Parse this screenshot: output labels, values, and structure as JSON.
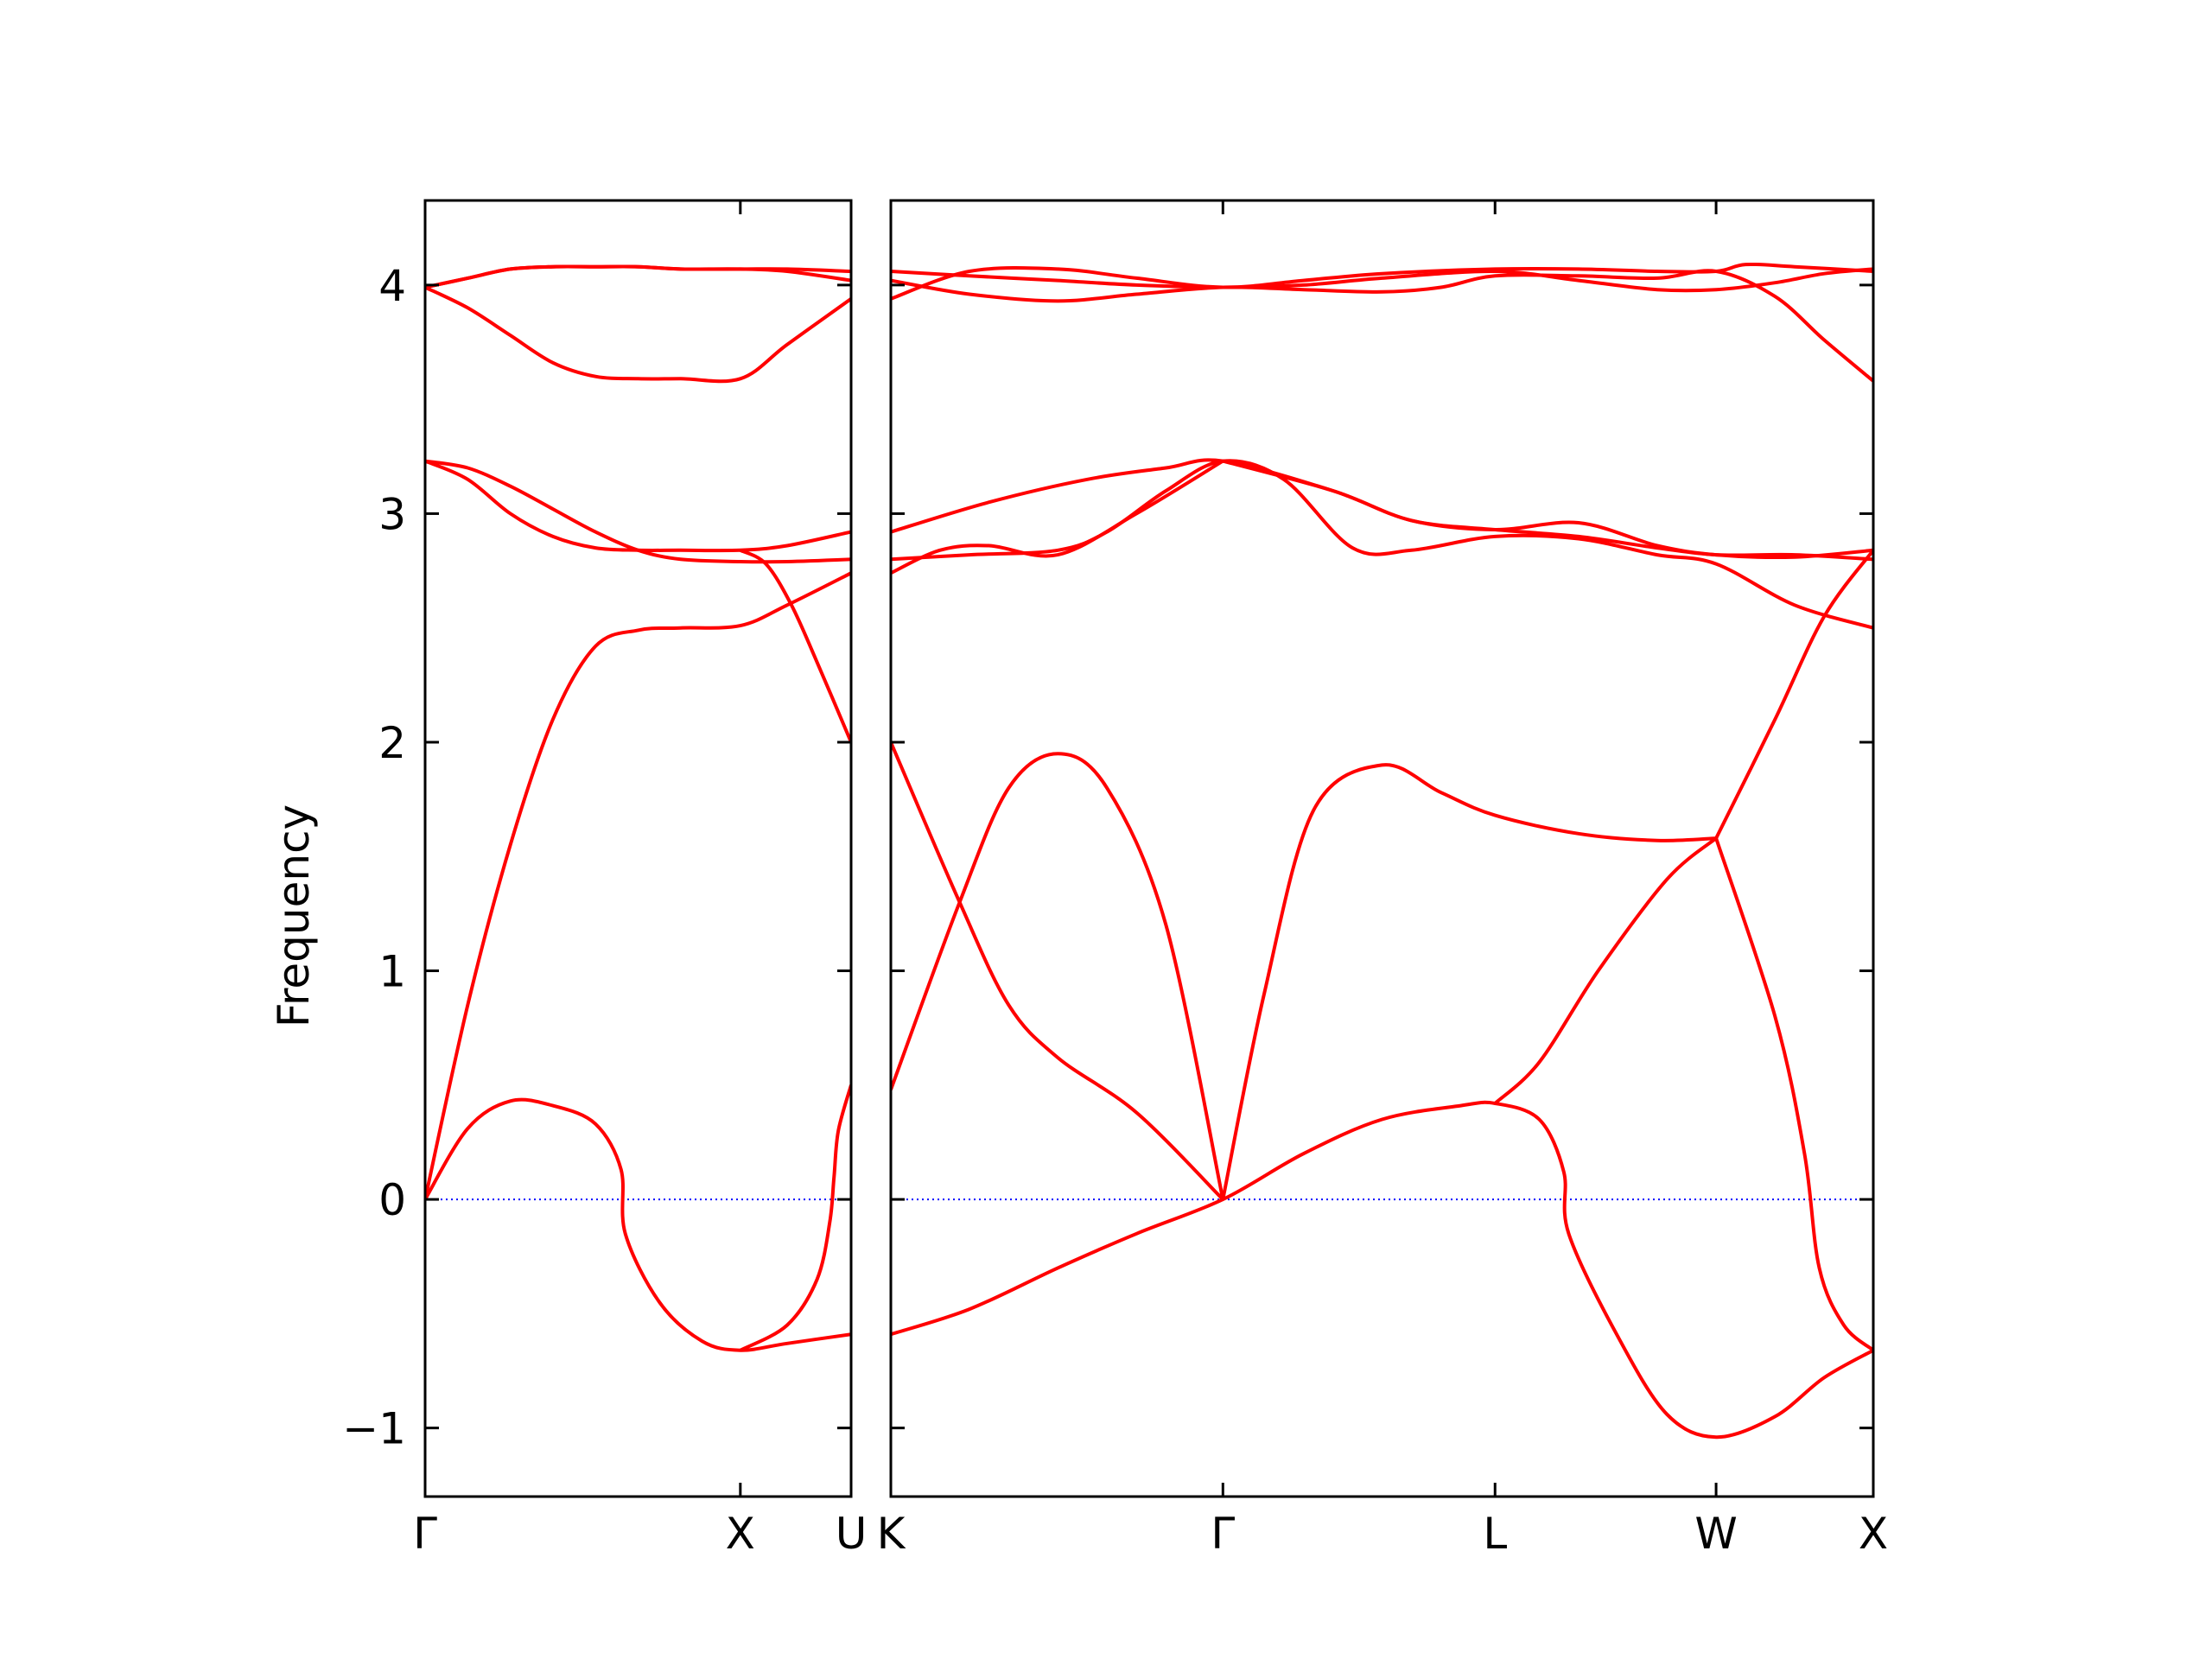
{
  "chart_data": {
    "type": "line",
    "ylabel": "Frequency",
    "ylim": [
      -1.3,
      4.37
    ],
    "yticks": [
      -1,
      0,
      1,
      2,
      3,
      4
    ],
    "ytick_labels": [
      "−1",
      "0",
      "1",
      "2",
      "3",
      "4"
    ],
    "colors": {
      "bands": "#ff0000",
      "zero_line": "#0000ff",
      "frame": "#000000"
    },
    "panels": [
      {
        "name": "panel-gamma-x-u",
        "xlim": [
          0,
          1
        ],
        "xticks": [
          {
            "pos": 0.0,
            "label": "Γ"
          },
          {
            "pos": 0.74,
            "label": "X"
          },
          {
            "pos": 1.0,
            "label": "U"
          }
        ],
        "bands": [
          [
            [
              0,
              0
            ],
            [
              0.1,
              0.31
            ],
            [
              0.2,
              0.43
            ],
            [
              0.3,
              0.41
            ],
            [
              0.4,
              0.33
            ],
            [
              0.46,
              0.13
            ],
            [
              0.47,
              -0.15
            ],
            [
              0.55,
              -0.45
            ],
            [
              0.65,
              -0.62
            ],
            [
              0.74,
              -0.66
            ],
            [
              0.85,
              -0.63
            ],
            [
              1.0,
              -0.59
            ]
          ],
          [
            [
              0,
              0
            ],
            [
              0.1,
              0.85
            ],
            [
              0.2,
              1.55
            ],
            [
              0.3,
              2.1
            ],
            [
              0.4,
              2.42
            ],
            [
              0.5,
              2.49
            ],
            [
              0.6,
              2.5
            ],
            [
              0.74,
              2.51
            ],
            [
              0.85,
              2.6
            ],
            [
              1.0,
              2.74
            ]
          ],
          [
            [
              0,
              3.23
            ],
            [
              0.1,
              3.15
            ],
            [
              0.2,
              3.0
            ],
            [
              0.3,
              2.9
            ],
            [
              0.4,
              2.85
            ],
            [
              0.5,
              2.84
            ],
            [
              0.6,
              2.84
            ],
            [
              0.74,
              2.84
            ],
            [
              0.85,
              2.86
            ],
            [
              1.0,
              2.92
            ]
          ],
          [
            [
              0,
              3.23
            ],
            [
              0.1,
              3.2
            ],
            [
              0.2,
              3.12
            ],
            [
              0.3,
              3.02
            ],
            [
              0.4,
              2.92
            ],
            [
              0.5,
              2.84
            ],
            [
              0.6,
              2.8
            ],
            [
              0.74,
              2.79
            ],
            [
              0.85,
              2.79
            ],
            [
              1.0,
              2.8
            ]
          ],
          [
            [
              0,
              3.99
            ],
            [
              0.1,
              3.9
            ],
            [
              0.2,
              3.78
            ],
            [
              0.3,
              3.66
            ],
            [
              0.4,
              3.6
            ],
            [
              0.5,
              3.59
            ],
            [
              0.6,
              3.59
            ],
            [
              0.74,
              3.59
            ],
            [
              0.85,
              3.74
            ],
            [
              1.0,
              3.94
            ]
          ],
          [
            [
              0,
              3.99
            ],
            [
              0.1,
              4.03
            ],
            [
              0.2,
              4.07
            ],
            [
              0.3,
              4.08
            ],
            [
              0.4,
              4.08
            ],
            [
              0.5,
              4.08
            ],
            [
              0.6,
              4.07
            ],
            [
              0.74,
              4.07
            ],
            [
              0.85,
              4.06
            ],
            [
              1.0,
              4.02
            ]
          ],
          [
            [
              0,
              3.99
            ],
            [
              0.1,
              4.03
            ],
            [
              0.2,
              4.07
            ],
            [
              0.3,
              4.08
            ],
            [
              0.4,
              4.08
            ],
            [
              0.5,
              4.08
            ],
            [
              0.6,
              4.07
            ],
            [
              0.74,
              4.07
            ],
            [
              0.85,
              4.07
            ],
            [
              1.0,
              4.06
            ]
          ],
          [
            [
              0.74,
              -0.66
            ],
            [
              0.85,
              -0.55
            ],
            [
              0.92,
              -0.35
            ],
            [
              0.95,
              -0.1
            ],
            [
              0.96,
              0.1
            ],
            [
              0.97,
              0.3
            ],
            [
              1.0,
              0.5
            ]
          ],
          [
            [
              0.74,
              2.84
            ],
            [
              0.8,
              2.78
            ],
            [
              0.86,
              2.6
            ],
            [
              0.92,
              2.35
            ],
            [
              1.0,
              2.0
            ]
          ]
        ]
      },
      {
        "name": "panel-k-gamma-l-w-x",
        "xlim": [
          0,
          1
        ],
        "xticks": [
          {
            "pos": 0.0,
            "label": "K"
          },
          {
            "pos": 0.338,
            "label": "Γ"
          },
          {
            "pos": 0.615,
            "label": "L"
          },
          {
            "pos": 0.84,
            "label": "W"
          },
          {
            "pos": 1.0,
            "label": "X"
          }
        ],
        "bands": [
          [
            [
              0,
              -0.59
            ],
            [
              0.08,
              -0.48
            ],
            [
              0.17,
              -0.3
            ],
            [
              0.25,
              -0.15
            ],
            [
              0.338,
              0
            ],
            [
              0.42,
              0.2
            ],
            [
              0.5,
              0.35
            ],
            [
              0.58,
              0.41
            ],
            [
              0.615,
              0.42
            ],
            [
              0.66,
              0.35
            ],
            [
              0.685,
              0.12
            ],
            [
              0.69,
              -0.15
            ],
            [
              0.74,
              -0.6
            ],
            [
              0.79,
              -0.94
            ],
            [
              0.84,
              -1.04
            ],
            [
              0.9,
              -0.95
            ],
            [
              0.95,
              -0.78
            ],
            [
              1.0,
              -0.66
            ]
          ],
          [
            [
              0,
              0.48
            ],
            [
              0.07,
              1.3
            ],
            [
              0.12,
              1.8
            ],
            [
              0.17,
              1.95
            ],
            [
              0.22,
              1.8
            ],
            [
              0.28,
              1.2
            ],
            [
              0.338,
              0
            ]
          ],
          [
            [
              0,
              2.0
            ],
            [
              0.07,
              1.3
            ],
            [
              0.12,
              0.85
            ],
            [
              0.17,
              0.62
            ],
            [
              0.25,
              0.38
            ],
            [
              0.338,
              0
            ]
          ],
          [
            [
              0.338,
              0
            ],
            [
              0.38,
              0.9
            ],
            [
              0.43,
              1.7
            ],
            [
              0.5,
              1.9
            ],
            [
              0.56,
              1.78
            ],
            [
              0.615,
              1.68
            ],
            [
              0.7,
              1.6
            ],
            [
              0.78,
              1.57
            ],
            [
              0.84,
              1.58
            ]
          ],
          [
            [
              0.615,
              0.42
            ],
            [
              0.66,
              0.6
            ],
            [
              0.72,
              1.0
            ],
            [
              0.79,
              1.4
            ],
            [
              0.84,
              1.58
            ]
          ],
          [
            [
              0.84,
              1.58
            ],
            [
              0.9,
              0.8
            ],
            [
              0.93,
              0.2
            ],
            [
              0.945,
              -0.3
            ],
            [
              0.97,
              -0.55
            ],
            [
              1.0,
              -0.66
            ]
          ],
          [
            [
              0.84,
              1.58
            ],
            [
              0.9,
              2.1
            ],
            [
              0.95,
              2.55
            ],
            [
              1.0,
              2.84
            ]
          ],
          [
            [
              0,
              2.8
            ],
            [
              0.08,
              2.82
            ],
            [
              0.17,
              2.84
            ],
            [
              0.22,
              2.92
            ],
            [
              0.28,
              3.1
            ],
            [
              0.338,
              3.23
            ],
            [
              0.4,
              3.15
            ],
            [
              0.47,
              2.85
            ],
            [
              0.53,
              2.84
            ],
            [
              0.615,
              2.9
            ],
            [
              0.7,
              2.89
            ],
            [
              0.78,
              2.82
            ],
            [
              0.84,
              2.78
            ],
            [
              0.92,
              2.6
            ],
            [
              1.0,
              2.5
            ]
          ],
          [
            [
              0,
              2.74
            ],
            [
              0.05,
              2.84
            ],
            [
              0.1,
              2.86
            ],
            [
              0.17,
              2.82
            ],
            [
              0.25,
              3.0
            ],
            [
              0.338,
              3.23
            ]
          ],
          [
            [
              0,
              2.92
            ],
            [
              0.1,
              3.05
            ],
            [
              0.2,
              3.15
            ],
            [
              0.28,
              3.2
            ],
            [
              0.338,
              3.23
            ],
            [
              0.45,
              3.1
            ],
            [
              0.53,
              2.97
            ],
            [
              0.615,
              2.93
            ],
            [
              0.7,
              2.96
            ],
            [
              0.78,
              2.86
            ],
            [
              0.84,
              2.82
            ],
            [
              0.92,
              2.81
            ],
            [
              1.0,
              2.84
            ]
          ],
          [
            [
              0.338,
              3.23
            ],
            [
              0.45,
              3.1
            ],
            [
              0.53,
              2.97
            ],
            [
              0.615,
              2.93
            ],
            [
              0.7,
              2.9
            ],
            [
              0.78,
              2.85
            ],
            [
              0.84,
              2.82
            ],
            [
              0.92,
              2.82
            ],
            [
              1.0,
              2.8
            ]
          ],
          [
            [
              0,
              3.94
            ],
            [
              0.08,
              4.06
            ],
            [
              0.17,
              4.07
            ],
            [
              0.25,
              4.03
            ],
            [
              0.338,
              3.99
            ],
            [
              0.42,
              4.02
            ],
            [
              0.5,
              4.05
            ],
            [
              0.615,
              4.07
            ],
            [
              0.7,
              4.07
            ],
            [
              0.78,
              4.06
            ],
            [
              0.84,
              4.06
            ],
            [
              0.87,
              4.09
            ],
            [
              0.92,
              4.08
            ],
            [
              1.0,
              4.06
            ]
          ],
          [
            [
              0,
              4.02
            ],
            [
              0.08,
              3.96
            ],
            [
              0.17,
              3.93
            ],
            [
              0.25,
              3.96
            ],
            [
              0.338,
              3.99
            ],
            [
              0.42,
              3.98
            ],
            [
              0.5,
              3.97
            ],
            [
              0.56,
              3.99
            ],
            [
              0.615,
              4.04
            ],
            [
              0.7,
              4.04
            ],
            [
              0.78,
              4.03
            ],
            [
              0.84,
              4.06
            ],
            [
              0.9,
              3.95
            ],
            [
              0.95,
              3.76
            ],
            [
              1.0,
              3.58
            ]
          ],
          [
            [
              0,
              4.06
            ],
            [
              0.08,
              4.04
            ],
            [
              0.17,
              4.02
            ],
            [
              0.25,
              4.0
            ],
            [
              0.338,
              3.99
            ],
            [
              0.42,
              4.0
            ],
            [
              0.5,
              4.03
            ],
            [
              0.615,
              4.06
            ],
            [
              0.7,
              4.02
            ],
            [
              0.78,
              3.98
            ],
            [
              0.84,
              3.98
            ],
            [
              0.9,
              4.01
            ],
            [
              0.95,
              4.05
            ],
            [
              1.0,
              4.07
            ]
          ]
        ]
      }
    ]
  }
}
